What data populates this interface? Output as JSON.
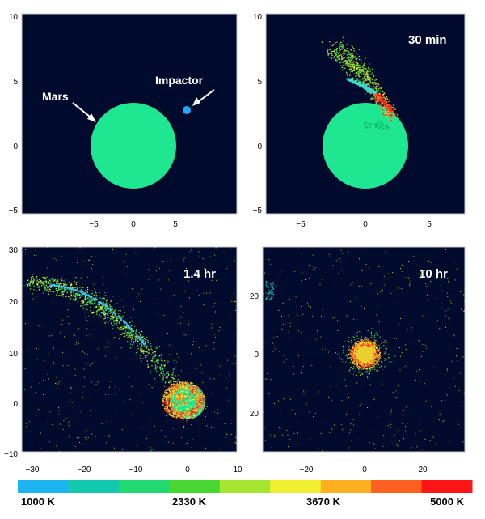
{
  "panels": [
    {
      "title": "",
      "x_ticks": [
        "−5",
        "0",
        "5"
      ],
      "y_ticks": [
        "10",
        "5",
        "0",
        "−5"
      ],
      "labels": {
        "planet": "Mars",
        "impactor": "Impactor"
      }
    },
    {
      "title": "30 min",
      "x_ticks": [
        "−5",
        "0",
        "5"
      ],
      "y_ticks": [
        "10",
        "5",
        "0",
        "−5"
      ]
    },
    {
      "title": "1.4 hr",
      "x_ticks": [
        "−30",
        "−20",
        "−10",
        "0",
        "10"
      ],
      "y_ticks": [
        "30",
        "20",
        "10",
        "0",
        "−10"
      ]
    },
    {
      "title": "10 hr",
      "x_ticks": [
        "−20",
        "0",
        "20"
      ],
      "y_ticks": [
        "20",
        "0",
        "20"
      ]
    }
  ],
  "colorbar": {
    "labels": [
      "1000 K",
      "2330 K",
      "3670 K",
      "5000 K"
    ],
    "colors": [
      "#1bb3f0",
      "#14c8b0",
      "#22d870",
      "#46d830",
      "#a6e630",
      "#f0f030",
      "#ffb020",
      "#ff6020",
      "#ff1515"
    ]
  },
  "colors": {
    "background": "#000a2c",
    "planet": "#1fe691",
    "impactor": "#20a7ff"
  }
}
